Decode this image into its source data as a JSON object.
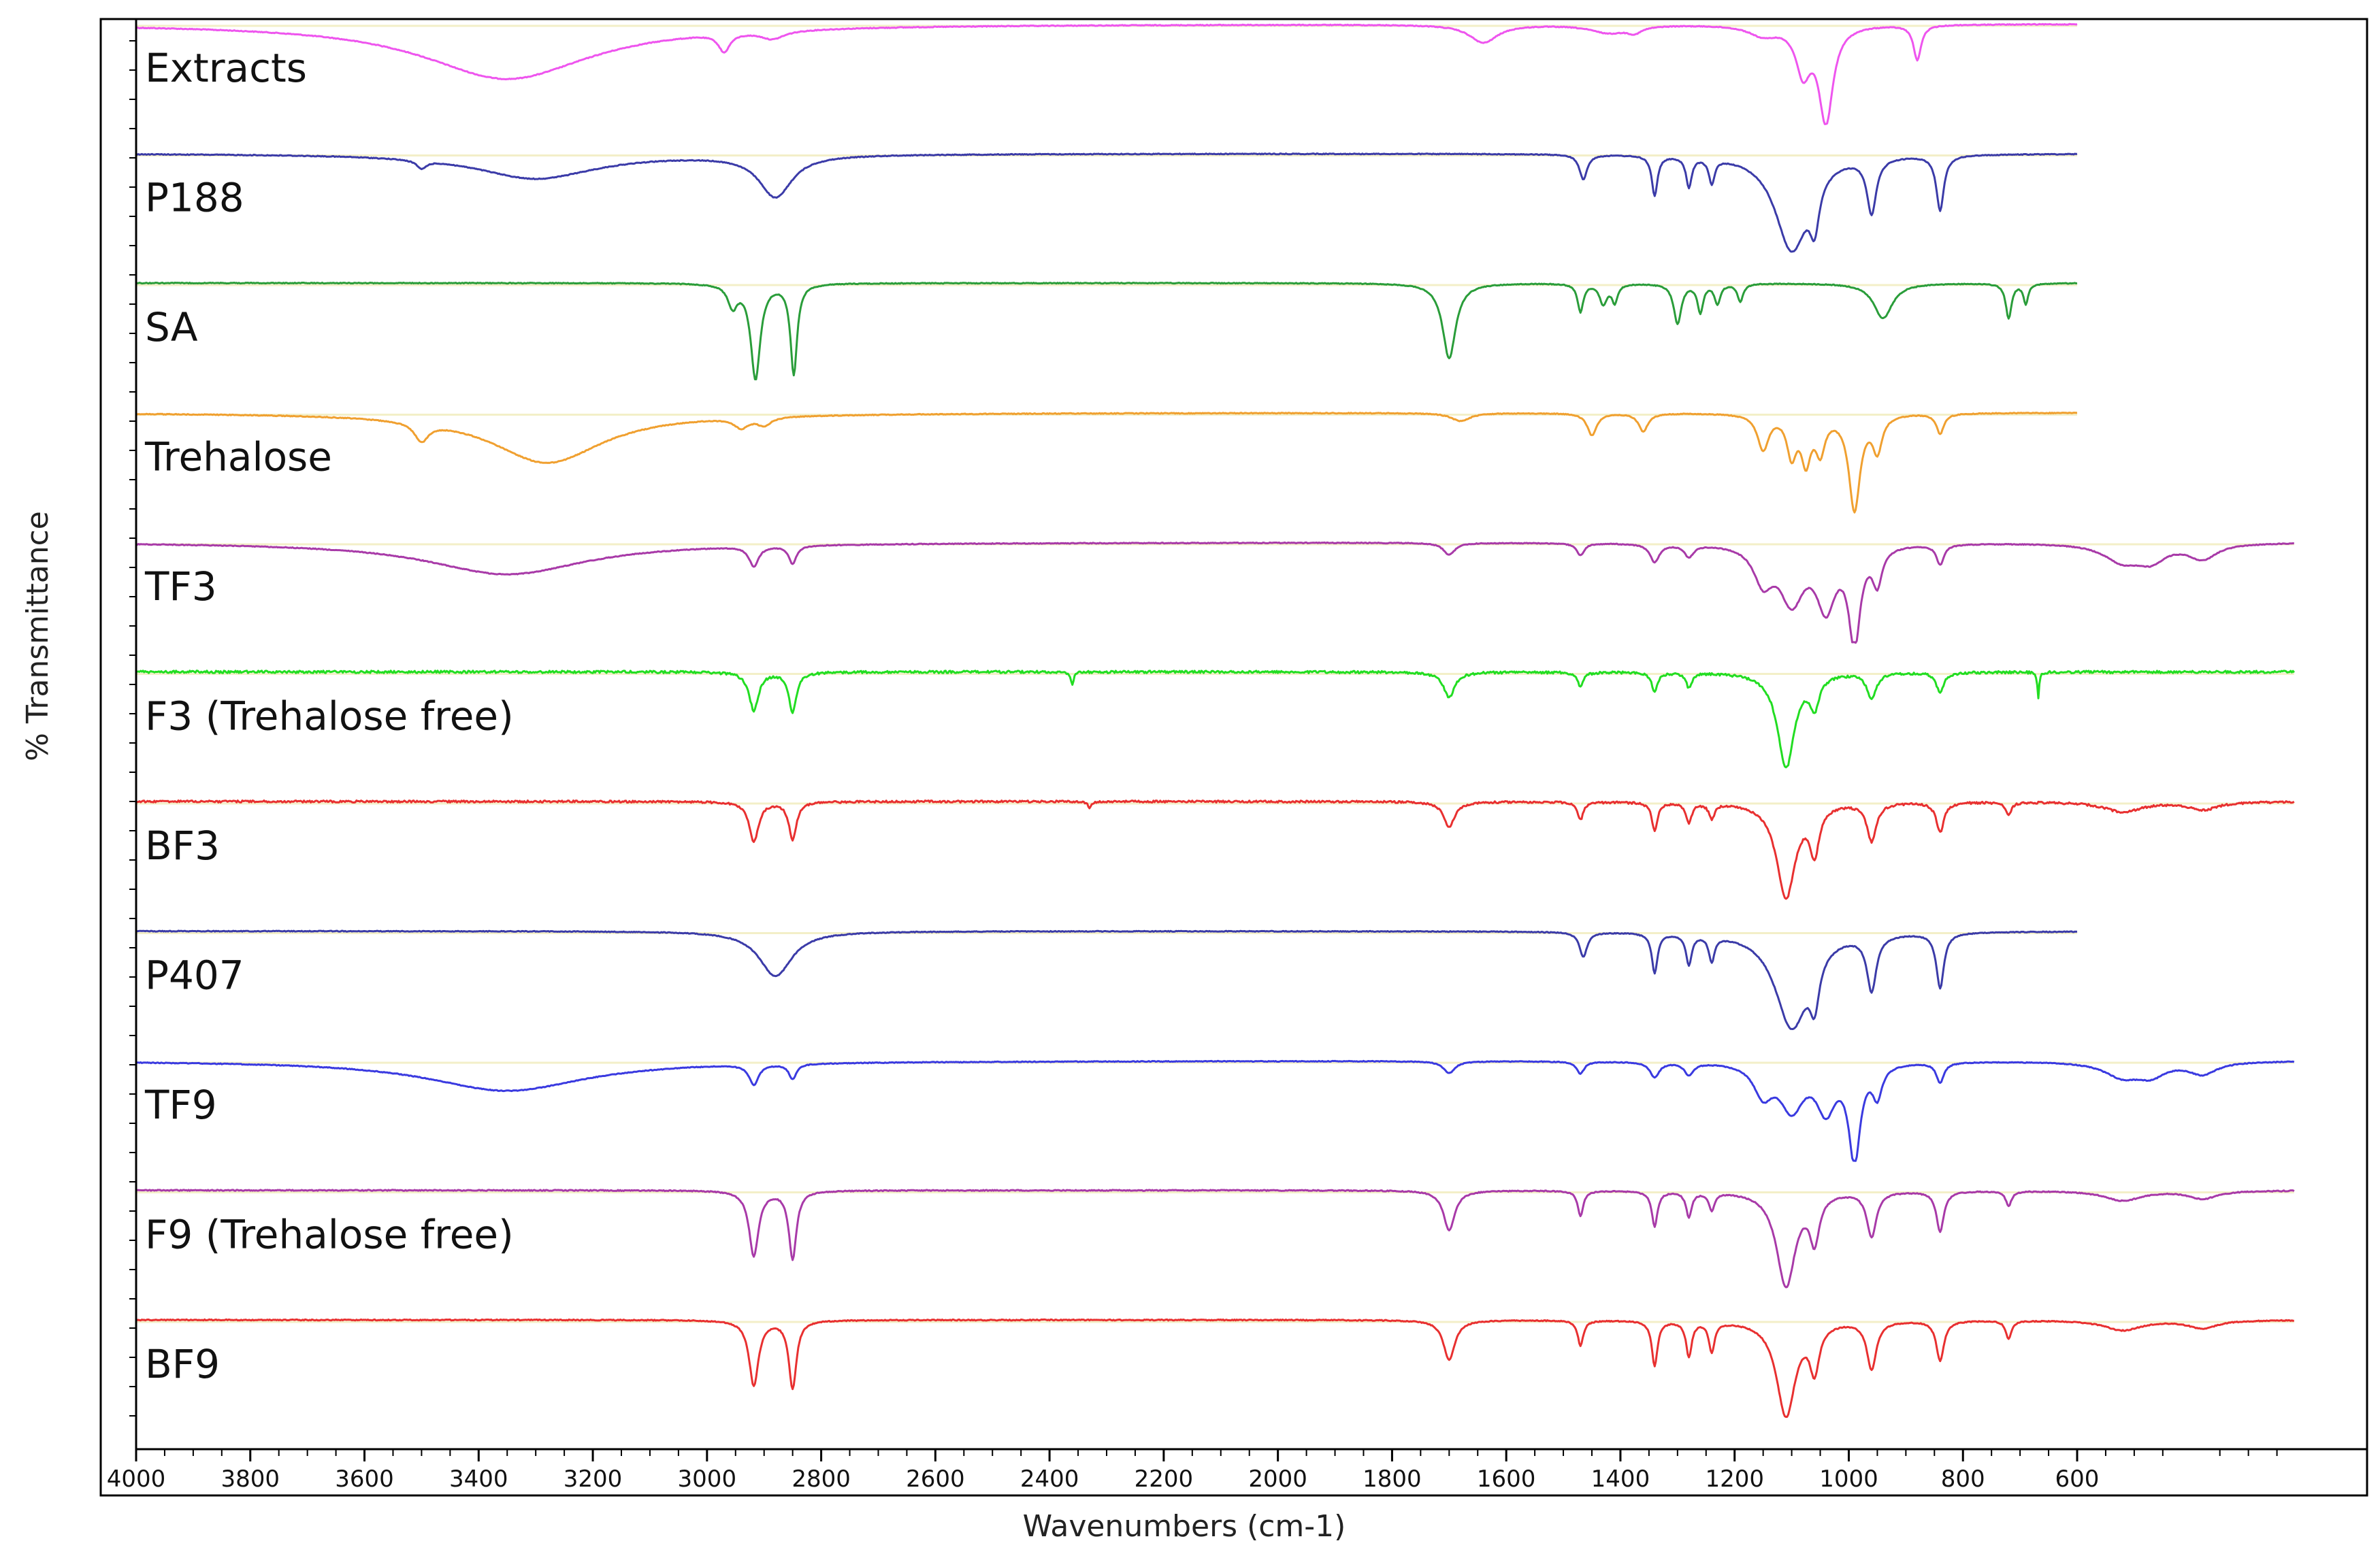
{
  "chart_data": {
    "type": "line",
    "xlabel": "Wavenumbers (cm-1)",
    "ylabel": "% Transmittance",
    "xlim": [
      4000,
      220
    ],
    "x_reversed": true,
    "x_ticks": [
      4000,
      3800,
      3600,
      3400,
      3200,
      3000,
      2800,
      2600,
      2400,
      2200,
      2000,
      1800,
      1600,
      1400,
      1200,
      1000,
      800,
      600
    ],
    "x_tick_labels": [
      "4000",
      "3800",
      "3600",
      "3400",
      "3200",
      "3000",
      "2800",
      "2600",
      "2400",
      "2200",
      "2000",
      "1800",
      "1600",
      "1400",
      "1200",
      "1000",
      "800",
      "600"
    ],
    "y_ticks_labeled": false,
    "grid": "faint horizontal baselines per trace",
    "legend": "labels inside plot, left of each trace",
    "series": [
      {
        "name": "Extracts",
        "color": "#ee55ee",
        "x_range": [
          4000,
          600
        ],
        "depth": 0.95,
        "noise": 0.004,
        "bands": [
          [
            3350,
            180,
            0.55
          ],
          [
            2970,
            12,
            0.18
          ],
          [
            2885,
            25,
            0.08
          ],
          [
            1640,
            30,
            0.18
          ],
          [
            1420,
            40,
            0.08
          ],
          [
            1375,
            15,
            0.06
          ],
          [
            1150,
            30,
            0.1
          ],
          [
            1080,
            15,
            0.45
          ],
          [
            1040,
            15,
            0.95
          ],
          [
            880,
            8,
            0.35
          ]
        ]
      },
      {
        "name": "P188",
        "color": "#3b3ba8",
        "x_range": [
          4000,
          600
        ],
        "depth": 0.95,
        "noise": 0.004,
        "bands": [
          [
            3500,
            10,
            0.08
          ],
          [
            3300,
            130,
            0.25
          ],
          [
            2880,
            35,
            0.42
          ],
          [
            1465,
            8,
            0.25
          ],
          [
            1340,
            6,
            0.4
          ],
          [
            1280,
            6,
            0.3
          ],
          [
            1240,
            6,
            0.25
          ],
          [
            1100,
            35,
            0.95
          ],
          [
            1060,
            10,
            0.45
          ],
          [
            960,
            10,
            0.55
          ],
          [
            840,
            8,
            0.55
          ]
        ]
      },
      {
        "name": "SA",
        "color": "#2a9d3a",
        "x_range": [
          4000,
          600
        ],
        "depth": 0.95,
        "noise": 0.004,
        "bands": [
          [
            2955,
            10,
            0.22
          ],
          [
            2915,
            10,
            0.95
          ],
          [
            2848,
            7,
            0.9
          ],
          [
            1700,
            14,
            0.75
          ],
          [
            1470,
            6,
            0.28
          ],
          [
            1430,
            8,
            0.2
          ],
          [
            1410,
            6,
            0.18
          ],
          [
            1300,
            8,
            0.4
          ],
          [
            1260,
            6,
            0.28
          ],
          [
            1230,
            6,
            0.2
          ],
          [
            1190,
            6,
            0.18
          ],
          [
            940,
            20,
            0.35
          ],
          [
            720,
            6,
            0.35
          ],
          [
            690,
            5,
            0.2
          ]
        ]
      },
      {
        "name": "Trehalose",
        "color": "#f0a030",
        "x_range": [
          4000,
          600
        ],
        "depth": 0.95,
        "noise": 0.004,
        "bands": [
          [
            3500,
            15,
            0.18
          ],
          [
            3280,
            120,
            0.5
          ],
          [
            2940,
            15,
            0.1
          ],
          [
            2900,
            15,
            0.08
          ],
          [
            1680,
            20,
            0.08
          ],
          [
            1450,
            10,
            0.22
          ],
          [
            1360,
            10,
            0.18
          ],
          [
            1150,
            12,
            0.35
          ],
          [
            1100,
            10,
            0.4
          ],
          [
            1075,
            10,
            0.45
          ],
          [
            1050,
            10,
            0.35
          ],
          [
            990,
            12,
            0.95
          ],
          [
            950,
            10,
            0.35
          ],
          [
            840,
            8,
            0.2
          ]
        ]
      },
      {
        "name": "TF3",
        "color": "#a83aa8",
        "x_range": [
          4000,
          220
        ],
        "depth": 0.95,
        "noise": 0.004,
        "bands": [
          [
            3350,
            170,
            0.32
          ],
          [
            2918,
            10,
            0.2
          ],
          [
            2850,
            8,
            0.18
          ],
          [
            1700,
            12,
            0.12
          ],
          [
            1470,
            8,
            0.12
          ],
          [
            1340,
            10,
            0.18
          ],
          [
            1280,
            10,
            0.12
          ],
          [
            1150,
            20,
            0.35
          ],
          [
            1100,
            25,
            0.55
          ],
          [
            1040,
            20,
            0.6
          ],
          [
            990,
            12,
            0.95
          ],
          [
            950,
            10,
            0.35
          ],
          [
            840,
            8,
            0.2
          ],
          [
            520,
            40,
            0.18
          ],
          [
            470,
            30,
            0.15
          ],
          [
            380,
            30,
            0.15
          ]
        ]
      },
      {
        "name": "F3 (Trehalose free)",
        "color": "#22dd22",
        "x_range": [
          4000,
          220
        ],
        "depth": 0.95,
        "noise": 0.012,
        "bands": [
          [
            2918,
            10,
            0.38
          ],
          [
            2850,
            8,
            0.4
          ],
          [
            2360,
            3,
            0.12
          ],
          [
            1700,
            12,
            0.25
          ],
          [
            1470,
            6,
            0.15
          ],
          [
            1340,
            6,
            0.2
          ],
          [
            1280,
            6,
            0.15
          ],
          [
            1110,
            18,
            0.95
          ],
          [
            1060,
            10,
            0.3
          ],
          [
            960,
            10,
            0.25
          ],
          [
            840,
            8,
            0.2
          ],
          [
            668,
            2,
            0.25
          ]
        ]
      },
      {
        "name": "BF3",
        "color": "#e83030",
        "x_range": [
          4000,
          220
        ],
        "depth": 0.95,
        "noise": 0.01,
        "bands": [
          [
            2918,
            10,
            0.4
          ],
          [
            2850,
            8,
            0.38
          ],
          [
            2330,
            4,
            0.06
          ],
          [
            1700,
            12,
            0.25
          ],
          [
            1470,
            6,
            0.18
          ],
          [
            1340,
            6,
            0.28
          ],
          [
            1280,
            6,
            0.2
          ],
          [
            1240,
            6,
            0.15
          ],
          [
            1110,
            20,
            0.95
          ],
          [
            1060,
            10,
            0.45
          ],
          [
            960,
            10,
            0.38
          ],
          [
            840,
            8,
            0.3
          ],
          [
            720,
            6,
            0.12
          ],
          [
            520,
            40,
            0.1
          ],
          [
            380,
            30,
            0.08
          ]
        ]
      },
      {
        "name": "P407",
        "color": "#3b3ba8",
        "x_range": [
          4000,
          600
        ],
        "depth": 0.95,
        "noise": 0.004,
        "bands": [
          [
            2880,
            35,
            0.45
          ],
          [
            1465,
            8,
            0.25
          ],
          [
            1340,
            6,
            0.4
          ],
          [
            1280,
            6,
            0.3
          ],
          [
            1240,
            6,
            0.25
          ],
          [
            1100,
            35,
            0.95
          ],
          [
            1060,
            10,
            0.45
          ],
          [
            960,
            10,
            0.55
          ],
          [
            840,
            8,
            0.55
          ]
        ]
      },
      {
        "name": "TF9",
        "color": "#3a3ae0",
        "x_range": [
          4000,
          220
        ],
        "depth": 0.95,
        "noise": 0.004,
        "bands": [
          [
            3350,
            170,
            0.3
          ],
          [
            2918,
            10,
            0.2
          ],
          [
            2850,
            8,
            0.15
          ],
          [
            1700,
            12,
            0.12
          ],
          [
            1470,
            8,
            0.12
          ],
          [
            1340,
            10,
            0.15
          ],
          [
            1280,
            10,
            0.12
          ],
          [
            1150,
            20,
            0.3
          ],
          [
            1100,
            25,
            0.45
          ],
          [
            1040,
            20,
            0.45
          ],
          [
            990,
            12,
            0.95
          ],
          [
            950,
            10,
            0.3
          ],
          [
            840,
            8,
            0.2
          ],
          [
            520,
            40,
            0.15
          ],
          [
            470,
            30,
            0.12
          ],
          [
            380,
            30,
            0.12
          ]
        ]
      },
      {
        "name": "F9 (Trehalose free)",
        "color": "#a83aa8",
        "x_range": [
          4000,
          220
        ],
        "depth": 0.95,
        "noise": 0.005,
        "bands": [
          [
            2918,
            10,
            0.65
          ],
          [
            2850,
            8,
            0.68
          ],
          [
            1700,
            12,
            0.4
          ],
          [
            1470,
            6,
            0.25
          ],
          [
            1340,
            6,
            0.35
          ],
          [
            1280,
            6,
            0.25
          ],
          [
            1240,
            6,
            0.18
          ],
          [
            1110,
            20,
            0.95
          ],
          [
            1060,
            10,
            0.45
          ],
          [
            960,
            10,
            0.45
          ],
          [
            840,
            8,
            0.4
          ],
          [
            720,
            6,
            0.15
          ],
          [
            520,
            40,
            0.1
          ],
          [
            380,
            30,
            0.08
          ]
        ]
      },
      {
        "name": "BF9",
        "color": "#e83030",
        "x_range": [
          4000,
          220
        ],
        "depth": 0.95,
        "noise": 0.005,
        "bands": [
          [
            2918,
            10,
            0.65
          ],
          [
            2850,
            8,
            0.68
          ],
          [
            1700,
            12,
            0.4
          ],
          [
            1470,
            6,
            0.25
          ],
          [
            1340,
            6,
            0.45
          ],
          [
            1280,
            6,
            0.35
          ],
          [
            1240,
            6,
            0.3
          ],
          [
            1110,
            20,
            0.95
          ],
          [
            1060,
            10,
            0.45
          ],
          [
            960,
            10,
            0.48
          ],
          [
            840,
            8,
            0.4
          ],
          [
            720,
            6,
            0.18
          ],
          [
            520,
            40,
            0.1
          ],
          [
            380,
            30,
            0.08
          ]
        ]
      }
    ]
  }
}
